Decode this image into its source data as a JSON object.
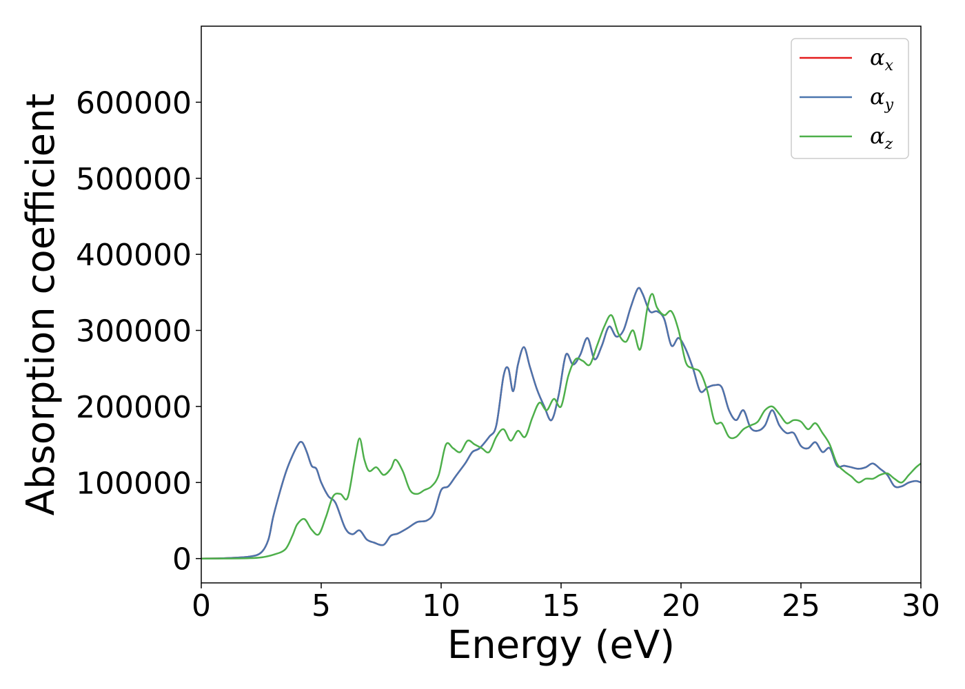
{
  "chart_data": {
    "type": "line",
    "xlabel": "Energy (eV)",
    "ylabel": "Absorption coefficient",
    "xlim": [
      0,
      30
    ],
    "ylim": [
      -32000,
      700000
    ],
    "xticks": [
      0,
      5,
      10,
      15,
      20,
      25,
      30
    ],
    "yticks": [
      0,
      100000,
      200000,
      300000,
      400000,
      500000,
      600000
    ],
    "grid": false,
    "legend": {
      "placement": "top-right"
    },
    "series": [
      {
        "name": "α",
        "subscript": "x",
        "color": "#e41a1c",
        "x": [
          0,
          1,
          2,
          2.5,
          2.8,
          3.0,
          3.3,
          3.6,
          4.0,
          4.2,
          4.4,
          4.6,
          4.8,
          5.0,
          5.3,
          5.6,
          6.0,
          6.3,
          6.6,
          6.9,
          7.2,
          7.6,
          7.9,
          8.2,
          8.6,
          9.0,
          9.4,
          9.7,
          10.0,
          10.3,
          10.6,
          11.0,
          11.3,
          11.6,
          12.0,
          12.3,
          12.6,
          12.8,
          13.0,
          13.2,
          13.45,
          13.7,
          14.0,
          14.3,
          14.6,
          14.9,
          15.2,
          15.5,
          15.8,
          16.1,
          16.4,
          16.7,
          17.0,
          17.3,
          17.6,
          17.9,
          18.2,
          18.4,
          18.7,
          19.0,
          19.3,
          19.6,
          19.9,
          20.2,
          20.5,
          20.8,
          21.1,
          21.4,
          21.7,
          22.0,
          22.3,
          22.6,
          22.9,
          23.2,
          23.5,
          23.8,
          24.1,
          24.4,
          24.7,
          25.0,
          25.3,
          25.6,
          25.9,
          26.2,
          26.5,
          26.8,
          27.1,
          27.4,
          27.7,
          28.0,
          28.3,
          28.6,
          28.9,
          29.2,
          29.5,
          29.8,
          30.0
        ],
        "y": [
          0,
          500,
          2500,
          8000,
          25000,
          55000,
          90000,
          120000,
          148000,
          153000,
          140000,
          122000,
          118000,
          100000,
          82000,
          73000,
          40000,
          32000,
          37000,
          25000,
          21000,
          18000,
          30000,
          33000,
          40000,
          48000,
          50000,
          60000,
          90000,
          95000,
          108000,
          125000,
          140000,
          145000,
          160000,
          175000,
          240000,
          250000,
          220000,
          255000,
          278000,
          252000,
          222000,
          200000,
          182000,
          215000,
          268000,
          255000,
          268000,
          290000,
          262000,
          280000,
          305000,
          292000,
          300000,
          330000,
          355000,
          348000,
          325000,
          325000,
          315000,
          280000,
          290000,
          275000,
          250000,
          220000,
          225000,
          228000,
          225000,
          195000,
          182000,
          195000,
          172000,
          168000,
          175000,
          195000,
          175000,
          165000,
          165000,
          148000,
          145000,
          153000,
          140000,
          145000,
          122000,
          122000,
          120000,
          118000,
          120000,
          125000,
          118000,
          110000,
          95000,
          95000,
          100000,
          102000,
          100000
        ]
      },
      {
        "name": "α",
        "subscript": "y",
        "color": "#4a75ae",
        "x": [
          0,
          1,
          2,
          2.5,
          2.8,
          3.0,
          3.3,
          3.6,
          4.0,
          4.2,
          4.4,
          4.6,
          4.8,
          5.0,
          5.3,
          5.6,
          6.0,
          6.3,
          6.6,
          6.9,
          7.2,
          7.6,
          7.9,
          8.2,
          8.6,
          9.0,
          9.4,
          9.7,
          10.0,
          10.3,
          10.6,
          11.0,
          11.3,
          11.6,
          12.0,
          12.3,
          12.6,
          12.8,
          13.0,
          13.2,
          13.45,
          13.7,
          14.0,
          14.3,
          14.6,
          14.9,
          15.2,
          15.5,
          15.8,
          16.1,
          16.4,
          16.7,
          17.0,
          17.3,
          17.6,
          17.9,
          18.2,
          18.4,
          18.7,
          19.0,
          19.3,
          19.6,
          19.9,
          20.2,
          20.5,
          20.8,
          21.1,
          21.4,
          21.7,
          22.0,
          22.3,
          22.6,
          22.9,
          23.2,
          23.5,
          23.8,
          24.1,
          24.4,
          24.7,
          25.0,
          25.3,
          25.6,
          25.9,
          26.2,
          26.5,
          26.8,
          27.1,
          27.4,
          27.7,
          28.0,
          28.3,
          28.6,
          28.9,
          29.2,
          29.5,
          29.8,
          30.0
        ],
        "y": [
          0,
          500,
          2500,
          8000,
          25000,
          55000,
          90000,
          120000,
          148000,
          153000,
          140000,
          122000,
          118000,
          100000,
          82000,
          73000,
          40000,
          32000,
          37000,
          25000,
          21000,
          18000,
          30000,
          33000,
          40000,
          48000,
          50000,
          60000,
          90000,
          95000,
          108000,
          125000,
          140000,
          145000,
          160000,
          175000,
          240000,
          250000,
          220000,
          255000,
          278000,
          252000,
          222000,
          200000,
          182000,
          215000,
          268000,
          255000,
          268000,
          290000,
          262000,
          280000,
          305000,
          292000,
          300000,
          330000,
          355000,
          348000,
          325000,
          325000,
          315000,
          280000,
          290000,
          275000,
          250000,
          220000,
          225000,
          228000,
          225000,
          195000,
          182000,
          195000,
          172000,
          168000,
          175000,
          195000,
          175000,
          165000,
          165000,
          148000,
          145000,
          153000,
          140000,
          145000,
          122000,
          122000,
          120000,
          118000,
          120000,
          125000,
          118000,
          110000,
          95000,
          95000,
          100000,
          102000,
          100000
        ]
      },
      {
        "name": "α",
        "subscript": "z",
        "color": "#4daf4a",
        "x": [
          0,
          1,
          2,
          2.5,
          3.0,
          3.5,
          3.8,
          4.0,
          4.3,
          4.6,
          4.9,
          5.2,
          5.5,
          5.8,
          6.1,
          6.4,
          6.6,
          6.8,
          7.0,
          7.3,
          7.6,
          7.9,
          8.1,
          8.4,
          8.7,
          9.0,
          9.3,
          9.6,
          9.9,
          10.2,
          10.5,
          10.8,
          11.1,
          11.4,
          11.7,
          12.0,
          12.3,
          12.6,
          12.9,
          13.2,
          13.5,
          13.8,
          14.1,
          14.4,
          14.7,
          15.0,
          15.3,
          15.6,
          15.9,
          16.2,
          16.5,
          16.8,
          17.1,
          17.4,
          17.7,
          18.0,
          18.3,
          18.6,
          18.8,
          19.0,
          19.3,
          19.6,
          19.9,
          20.2,
          20.5,
          20.8,
          21.1,
          21.4,
          21.7,
          22.0,
          22.3,
          22.6,
          22.9,
          23.2,
          23.5,
          23.8,
          24.1,
          24.4,
          24.7,
          25.0,
          25.3,
          25.6,
          25.9,
          26.2,
          26.5,
          26.8,
          27.1,
          27.4,
          27.7,
          28.0,
          28.3,
          28.6,
          28.9,
          29.2,
          29.5,
          29.8,
          30.0
        ],
        "y": [
          0,
          100,
          500,
          1500,
          5000,
          12000,
          30000,
          45000,
          52000,
          38000,
          32000,
          55000,
          82000,
          85000,
          80000,
          130000,
          158000,
          130000,
          115000,
          120000,
          110000,
          118000,
          130000,
          115000,
          90000,
          85000,
          90000,
          95000,
          110000,
          150000,
          145000,
          140000,
          155000,
          150000,
          145000,
          140000,
          160000,
          170000,
          155000,
          168000,
          160000,
          185000,
          205000,
          195000,
          210000,
          200000,
          240000,
          262000,
          260000,
          255000,
          280000,
          305000,
          320000,
          295000,
          285000,
          300000,
          275000,
          330000,
          348000,
          330000,
          320000,
          325000,
          300000,
          258000,
          250000,
          245000,
          220000,
          180000,
          178000,
          160000,
          160000,
          170000,
          175000,
          180000,
          195000,
          200000,
          190000,
          178000,
          182000,
          180000,
          170000,
          178000,
          165000,
          150000,
          125000,
          115000,
          108000,
          100000,
          105000,
          105000,
          110000,
          112000,
          105000,
          100000,
          110000,
          120000,
          125000
        ]
      }
    ]
  }
}
